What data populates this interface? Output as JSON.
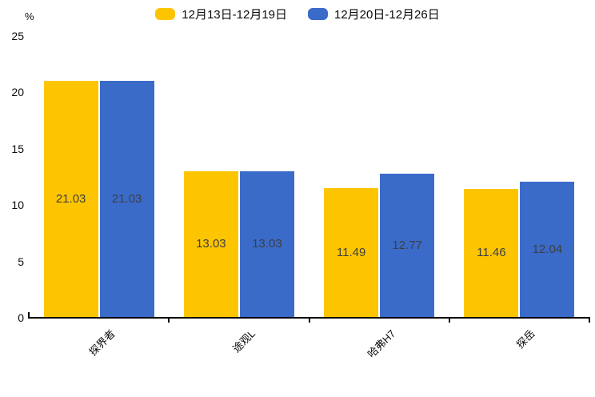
{
  "chart": {
    "unit_label": "%"
  },
  "chart_data": {
    "type": "bar",
    "title": "",
    "xlabel": "",
    "ylabel": "%",
    "categories": [
      "探界者",
      "途观L",
      "哈弗H7",
      "探岳"
    ],
    "series": [
      {
        "name": "12月13日-12月19日",
        "color": "#FDC500",
        "values": [
          21.03,
          13.03,
          11.49,
          11.46
        ]
      },
      {
        "name": "12月20日-12月26日",
        "color": "#3A6BC9",
        "values": [
          21.03,
          13.03,
          12.77,
          12.04
        ]
      }
    ],
    "value_label_decimals": 2,
    "ylim": [
      0,
      25
    ],
    "yticks": [
      0,
      5,
      10,
      15,
      20,
      25
    ],
    "grid": false,
    "legend_position": "top"
  }
}
